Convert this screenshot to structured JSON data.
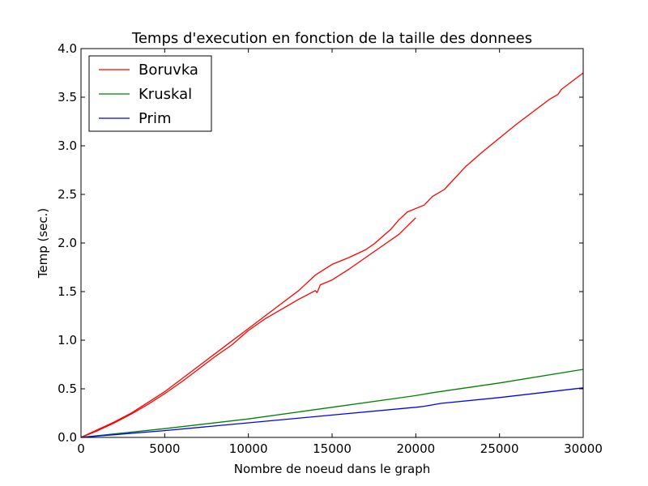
{
  "chart_data": {
    "type": "line",
    "title": "Temps d'execution en fonction de la taille des donnees",
    "xlabel": "Nombre de noeud dans le graph",
    "ylabel": "Temp (sec.)",
    "xlim": [
      0,
      30000
    ],
    "ylim": [
      0.0,
      4.0
    ],
    "xticks": [
      "0",
      "5000",
      "10000",
      "15000",
      "20000",
      "25000",
      "30000"
    ],
    "yticks": [
      "0.0",
      "0.5",
      "1.0",
      "1.5",
      "2.0",
      "2.5",
      "3.0",
      "3.5",
      "4.0"
    ],
    "grid": false,
    "legend_position": "top-left",
    "series": [
      {
        "name": "Boruvka",
        "color": "#ff0000",
        "points": [
          [
            0,
            0.0
          ],
          [
            1000,
            0.07
          ],
          [
            2000,
            0.15
          ],
          [
            3000,
            0.24
          ],
          [
            4000,
            0.34
          ],
          [
            5000,
            0.45
          ],
          [
            6000,
            0.57
          ],
          [
            7000,
            0.7
          ],
          [
            8000,
            0.83
          ],
          [
            9000,
            0.95
          ],
          [
            10000,
            1.1
          ],
          [
            11000,
            1.22
          ],
          [
            12000,
            1.32
          ],
          [
            13000,
            1.42
          ],
          [
            14000,
            1.51
          ],
          [
            14100,
            1.49
          ],
          [
            14300,
            1.57
          ],
          [
            15000,
            1.62
          ],
          [
            16000,
            1.73
          ],
          [
            17000,
            1.85
          ],
          [
            18000,
            1.97
          ],
          [
            19000,
            2.09
          ],
          [
            20000,
            2.26
          ]
        ]
      },
      {
        "name": "Boruvka",
        "color": "#ff0000",
        "points": [
          [
            0,
            0.0
          ],
          [
            1000,
            0.08
          ],
          [
            2000,
            0.16
          ],
          [
            3000,
            0.25
          ],
          [
            4000,
            0.36
          ],
          [
            5000,
            0.47
          ],
          [
            6000,
            0.6
          ],
          [
            7000,
            0.73
          ],
          [
            8000,
            0.86
          ],
          [
            9000,
            0.99
          ],
          [
            10000,
            1.12
          ],
          [
            11000,
            1.25
          ],
          [
            12000,
            1.38
          ],
          [
            13000,
            1.51
          ],
          [
            14000,
            1.67
          ],
          [
            15000,
            1.78
          ],
          [
            16000,
            1.85
          ],
          [
            17000,
            1.93
          ],
          [
            17500,
            1.99
          ],
          [
            18500,
            2.14
          ],
          [
            19000,
            2.24
          ],
          [
            19500,
            2.32
          ],
          [
            20500,
            2.39
          ],
          [
            21000,
            2.48
          ],
          [
            21700,
            2.55
          ],
          [
            23000,
            2.79
          ],
          [
            24000,
            2.94
          ],
          [
            25000,
            3.08
          ],
          [
            26000,
            3.22
          ],
          [
            27000,
            3.35
          ],
          [
            28000,
            3.48
          ],
          [
            28500,
            3.53
          ],
          [
            28700,
            3.58
          ],
          [
            30000,
            3.75
          ]
        ]
      },
      {
        "name": "Kruskal",
        "color": "#008000",
        "points": [
          [
            0,
            0.0
          ],
          [
            5000,
            0.09
          ],
          [
            10000,
            0.19
          ],
          [
            15000,
            0.31
          ],
          [
            20000,
            0.43
          ],
          [
            21000,
            0.46
          ],
          [
            25000,
            0.56
          ],
          [
            30000,
            0.7
          ]
        ]
      },
      {
        "name": "Prim",
        "color": "#0000ff",
        "points": [
          [
            0,
            0.0
          ],
          [
            5000,
            0.07
          ],
          [
            10000,
            0.15
          ],
          [
            15000,
            0.23
          ],
          [
            20000,
            0.31
          ],
          [
            20500,
            0.32
          ],
          [
            21500,
            0.35
          ],
          [
            25000,
            0.41
          ],
          [
            30000,
            0.51
          ]
        ]
      }
    ]
  }
}
